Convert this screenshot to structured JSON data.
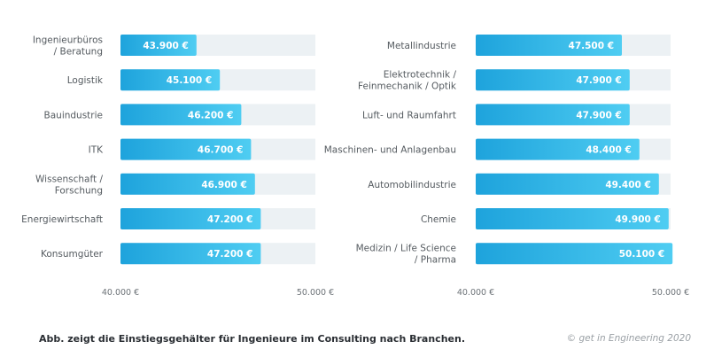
{
  "chart_data": [
    {
      "type": "bar",
      "orientation": "horizontal",
      "categories": [
        "Ingenieurbüros\n/ Beratung",
        "Logistik",
        "Bauindustrie",
        "ITK",
        "Wissenschaft /\nForschung",
        "Energiewirtschaft",
        "Konsumgüter"
      ],
      "values": [
        43900,
        45100,
        46200,
        46700,
        46900,
        47200,
        47200
      ],
      "value_labels": [
        "43.900 €",
        "45.100 €",
        "46.200 €",
        "46.700 €",
        "46.900 €",
        "47.200 €",
        "47.200 €"
      ],
      "xlim": [
        40000,
        50000
      ],
      "tick_labels": [
        "40.000 €",
        "50.000 €"
      ],
      "grid": false,
      "legend": "none"
    },
    {
      "type": "bar",
      "orientation": "horizontal",
      "categories": [
        "Metallindustrie",
        "Elektrotechnik /\nFeinmechanik / Optik",
        "Luft- und Raumfahrt",
        "Maschinen- und Anlagenbau",
        "Automobilindustrie",
        "Chemie",
        "Medizin / Life Science\n/ Pharma"
      ],
      "values": [
        47500,
        47900,
        47900,
        48400,
        49400,
        49900,
        50100
      ],
      "value_labels": [
        "47.500 €",
        "47.900 €",
        "47.900 €",
        "48.400 €",
        "49.400 €",
        "49.900 €",
        "50.100 €"
      ],
      "xlim": [
        40000,
        50000
      ],
      "tick_labels": [
        "40.000 €",
        "50.000 €"
      ],
      "grid": false,
      "legend": "none"
    }
  ],
  "caption": "Abb. zeigt die Einstiegsgehälter für Ingenieure im Consulting nach Branchen.",
  "credit": "© get in Engineering 2020",
  "colors": {
    "bar_start": "#1ea3dc",
    "bar_end": "#4fcdf2",
    "track": "#ecf1f4",
    "category_text": "#555b60",
    "tick_text": "#6d7378"
  }
}
